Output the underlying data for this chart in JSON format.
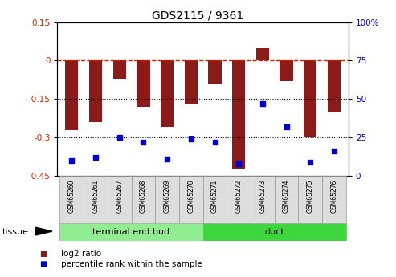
{
  "title": "GDS2115 / 9361",
  "samples": [
    "GSM65260",
    "GSM65261",
    "GSM65267",
    "GSM65268",
    "GSM65269",
    "GSM65270",
    "GSM65271",
    "GSM65272",
    "GSM65273",
    "GSM65274",
    "GSM65275",
    "GSM65276"
  ],
  "log2_ratio": [
    -0.27,
    -0.24,
    -0.07,
    -0.18,
    -0.26,
    -0.17,
    -0.09,
    -0.42,
    0.05,
    -0.08,
    -0.3,
    -0.2
  ],
  "percentile_rank": [
    10,
    12,
    25,
    22,
    11,
    24,
    22,
    8,
    47,
    32,
    9,
    16
  ],
  "bar_color": "#8B1A1A",
  "blue_color": "#0000CD",
  "tissue_groups": [
    {
      "label": "terminal end bud",
      "start": 0,
      "end": 6,
      "color": "#90EE90"
    },
    {
      "label": "duct",
      "start": 6,
      "end": 12,
      "color": "#3DD63D"
    }
  ],
  "ylim_left": [
    -0.45,
    0.15
  ],
  "ylim_right": [
    0,
    100
  ],
  "yticks_left": [
    0.15,
    0.0,
    -0.15,
    -0.3,
    -0.45
  ],
  "yticks_right": [
    100,
    75,
    50,
    25,
    0
  ],
  "hlines": [
    {
      "y": 0.0,
      "style": "--",
      "color": "#CC2200",
      "lw": 1.0
    },
    {
      "y": -0.15,
      "style": ":",
      "color": "#000000",
      "lw": 0.8
    },
    {
      "y": -0.3,
      "style": ":",
      "color": "#000000",
      "lw": 0.8
    }
  ],
  "bg_color": "#FFFFFF",
  "legend_items": [
    {
      "label": "log2 ratio",
      "color": "#8B1A1A"
    },
    {
      "label": "percentile rank within the sample",
      "color": "#0000CD"
    }
  ],
  "tissue_label": "tissue",
  "bar_width": 0.55,
  "left_tick_color": "#CC2200",
  "right_tick_color": "#0000CD"
}
